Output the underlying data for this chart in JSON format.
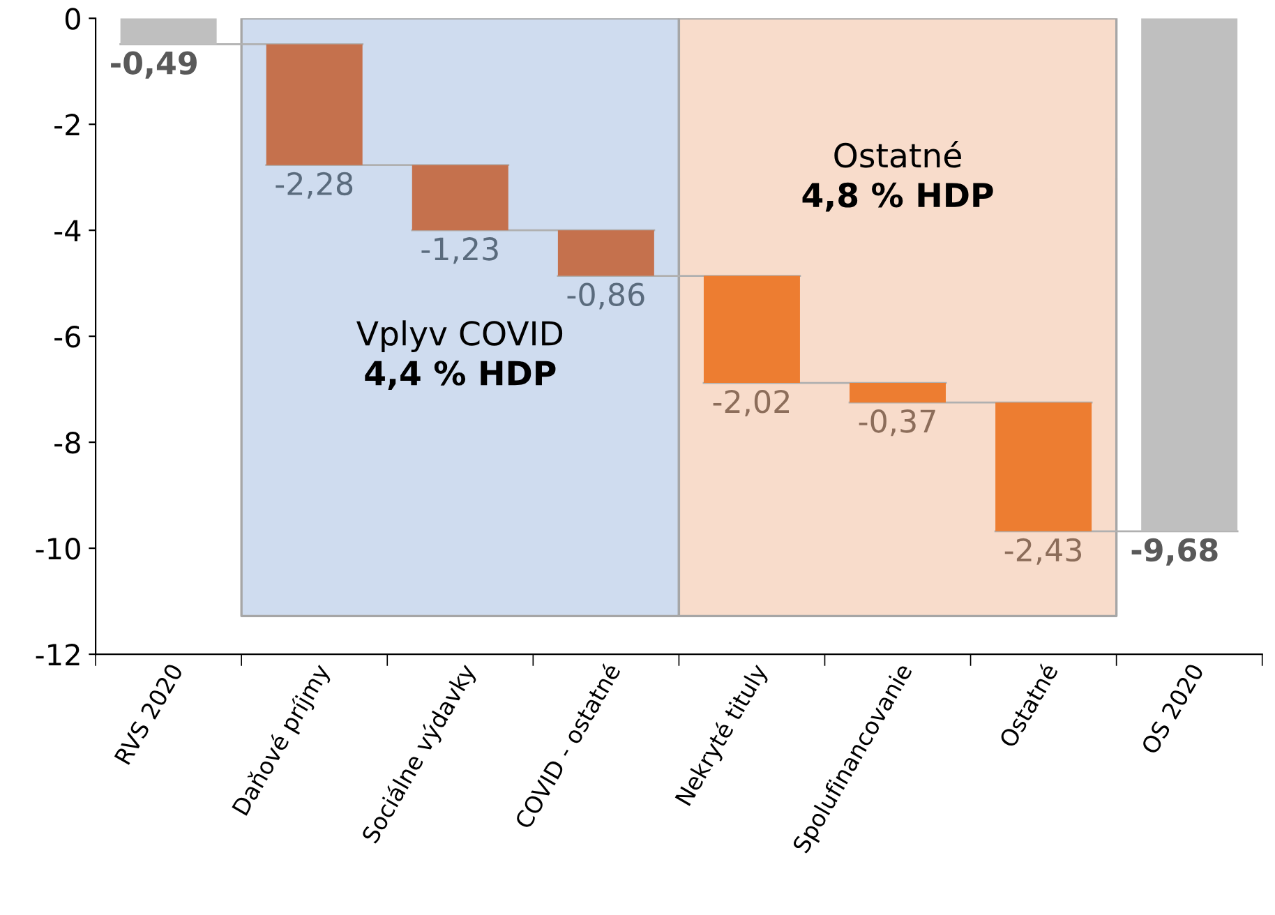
{
  "chart_data": {
    "type": "bar",
    "categories": [
      "RVS 2020",
      "Daňové príjmy",
      "Sociálne výdavky",
      "COVID - ostatné",
      "Nekryté tituly",
      "Spolufinancovanie",
      "Ostatné",
      "OS 2020"
    ],
    "values": [
      -0.49,
      -2.28,
      -1.23,
      -0.86,
      -2.02,
      -0.37,
      -2.43,
      -9.68
    ],
    "base": [
      0,
      -0.49,
      -2.77,
      -4.0,
      -4.86,
      -6.88,
      -7.25,
      0
    ],
    "colors": [
      "#bfbfbf",
      "#c5714d",
      "#c5714d",
      "#c5714d",
      "#ed7d31",
      "#ed7d31",
      "#ed7d31",
      "#bfbfbf"
    ],
    "value_labels": [
      "-0,49",
      "-2,28",
      "-1,23",
      "-0,86",
      "-2,02",
      "-0,37",
      "-2,43",
      "-9,68"
    ],
    "bands": [
      {
        "axis": "x",
        "from": "Daňové príjmy",
        "to": "COVID - ostatné",
        "label": "Vplyv COVID\n4,4 % HDP",
        "color": "#cfdcef"
      },
      {
        "axis": "x",
        "from": "Nekryté tituly",
        "to": "Ostatné",
        "label": "Ostatné\n4,8 % HDP",
        "color": "#f8dccb"
      }
    ],
    "ylim": [
      -12,
      0
    ],
    "yticks": [
      0,
      -2,
      -4,
      -6,
      -8,
      -10,
      -12
    ],
    "grid": false,
    "legend": false
  }
}
